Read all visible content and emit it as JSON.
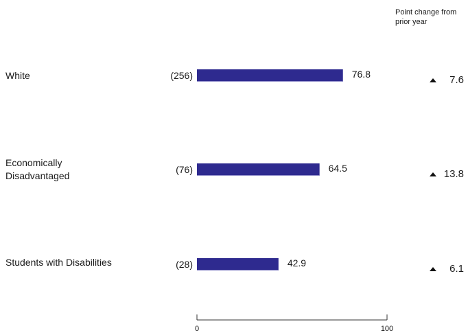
{
  "chart_data": {
    "type": "bar",
    "orientation": "horizontal",
    "header": {
      "line1": "Point change from",
      "line2": "prior year"
    },
    "xlim": [
      0,
      100
    ],
    "ticks": [
      "0",
      "100"
    ],
    "bar_color": "#2e2a8f",
    "rows": [
      {
        "label_lines": [
          "White"
        ],
        "count": "(256)",
        "value": 76.8,
        "value_label": "76.8",
        "change": "7.6",
        "change_direction": "up"
      },
      {
        "label_lines": [
          "Economically",
          "Disadvantaged"
        ],
        "count": "(76)",
        "value": 64.5,
        "value_label": "64.5",
        "change": "13.8",
        "change_direction": "up"
      },
      {
        "label_lines": [
          "Students with Disabilities"
        ],
        "count": "(28)",
        "value": 42.9,
        "value_label": "42.9",
        "change": "6.1",
        "change_direction": "up"
      }
    ]
  }
}
